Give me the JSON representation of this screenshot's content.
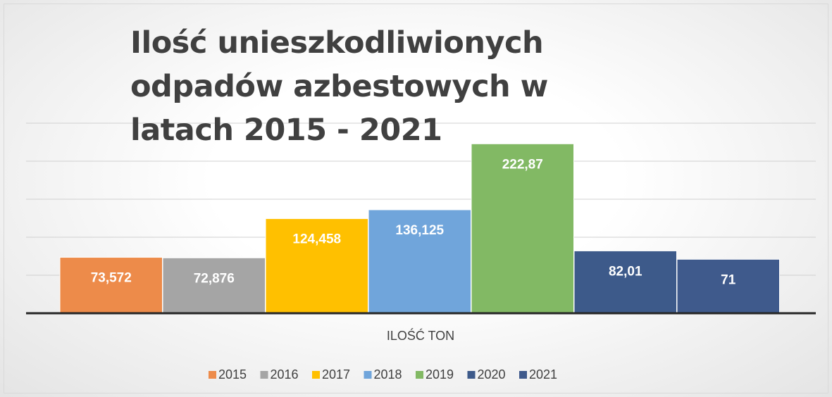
{
  "chart_data": {
    "type": "bar",
    "title": "Ilość unieszkodliwionych odpadów azbestowych w latach 2015 - 2021",
    "categories": [
      "ILOŚĆ TON"
    ],
    "series": [
      {
        "name": "2015",
        "color": "#ed8b4a",
        "values": [
          73.572
        ],
        "value_labels": [
          "73,572"
        ]
      },
      {
        "name": "2016",
        "color": "#a5a5a5",
        "values": [
          72.876
        ],
        "value_labels": [
          "72,876"
        ]
      },
      {
        "name": "2017",
        "color": "#ffc000",
        "values": [
          124.458
        ],
        "value_labels": [
          "124,458"
        ]
      },
      {
        "name": "2018",
        "color": "#70a5db",
        "values": [
          136.125
        ],
        "value_labels": [
          "136,125"
        ]
      },
      {
        "name": "2019",
        "color": "#82b964",
        "values": [
          222.87
        ],
        "value_labels": [
          "222,87"
        ]
      },
      {
        "name": "2020",
        "color": "#3d5a8a",
        "values": [
          82.01
        ],
        "value_labels": [
          "82,01"
        ]
      },
      {
        "name": "2021",
        "color": "#3f5a8c",
        "values": [
          71
        ],
        "value_labels": [
          "71"
        ]
      }
    ],
    "ylim": [
      0,
      250
    ],
    "yticks": [
      0,
      50,
      100,
      150,
      200,
      250
    ],
    "grid": true,
    "legend": "bottom"
  }
}
